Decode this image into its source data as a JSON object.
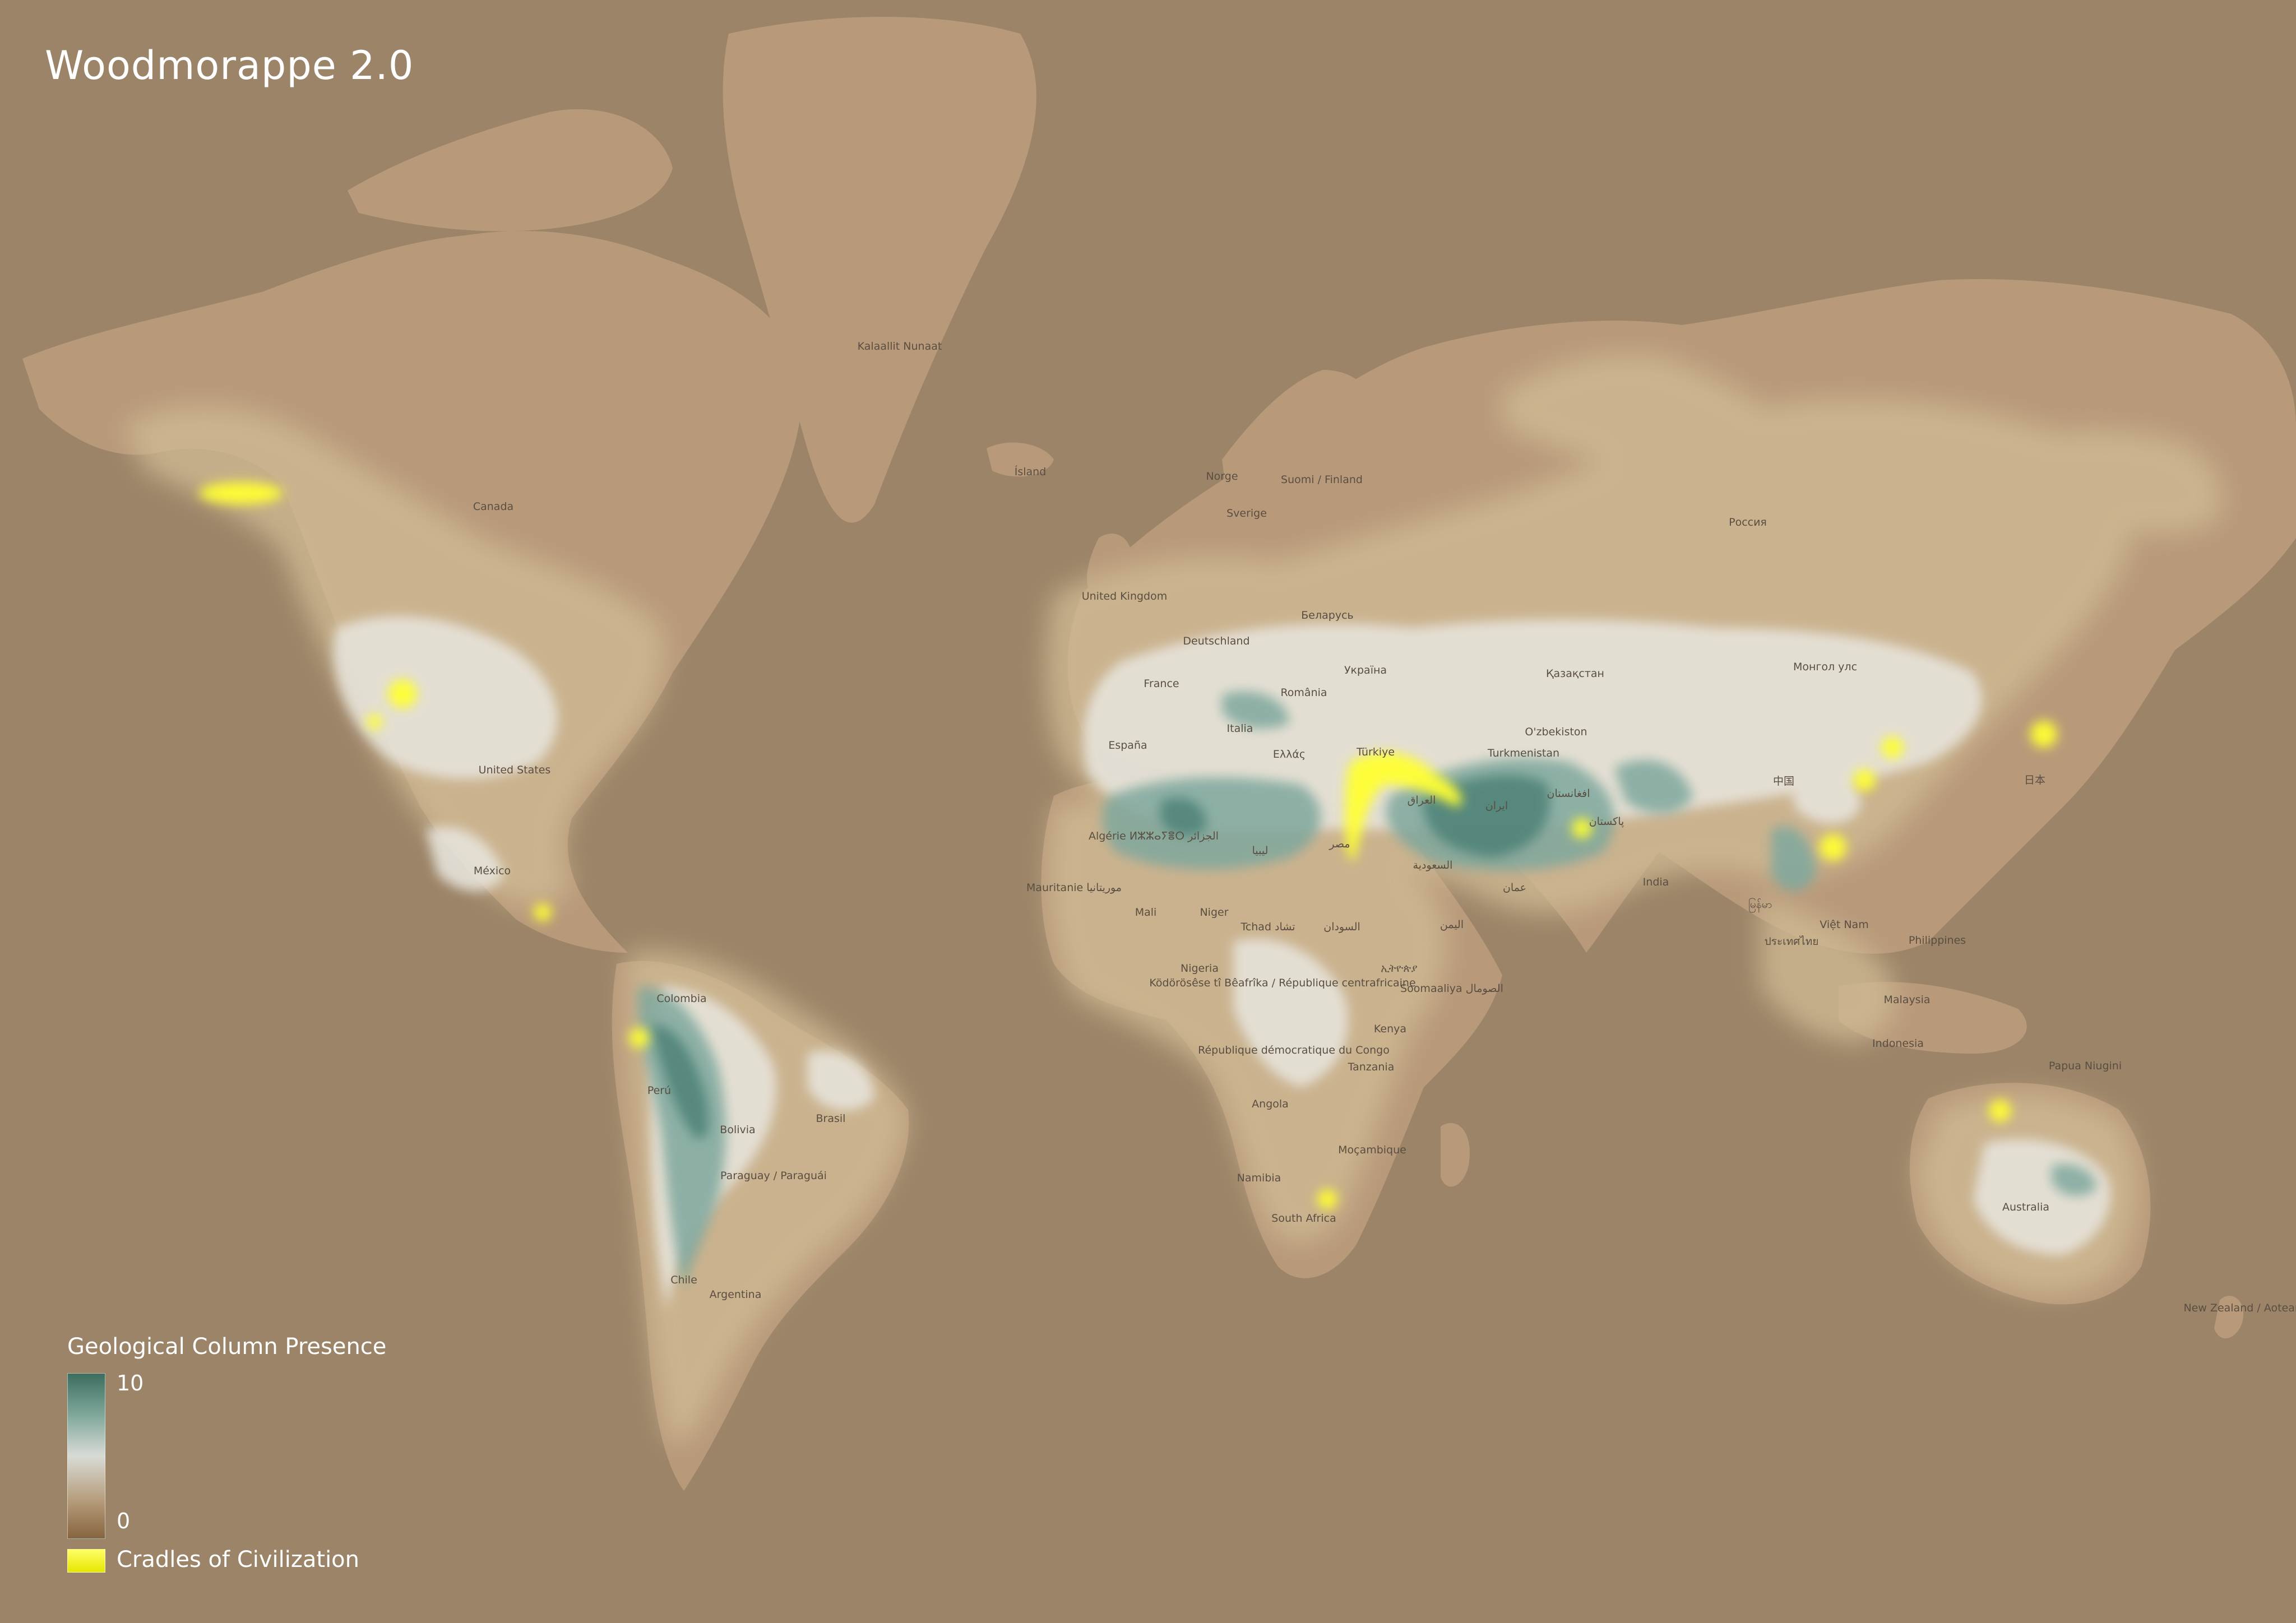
{
  "map": {
    "title": "Woodmorappe 2.0",
    "colors": {
      "ocean": "#9c8468",
      "land": "#b89a7b",
      "heat_low": "#cfb993",
      "heat_mid": "#e8e6df",
      "heat_high": "#7fa89e",
      "heat_max": "#4a7f75",
      "cradle": "#ffff33"
    },
    "labels": [
      "Kalaallit Nunaat",
      "Ísland",
      "Canada",
      "United States",
      "México",
      "Colombia",
      "Perú",
      "Bolivia",
      "Brasil",
      "Paraguay / Paraguái",
      "Chile",
      "Argentina",
      "Norge",
      "Sverige",
      "Suomi / Finland",
      "United Kingdom",
      "Deutschland",
      "Беларусь",
      "France",
      "România",
      "Україна",
      "España",
      "Italia",
      "Ελλάς",
      "Türkiye",
      "Қазақстан",
      "Россия",
      "O'zbekiston",
      "Монгол улс",
      "Turkmenistan",
      "العراق",
      "ایران",
      "افغانستان",
      "پاکستان",
      "مصر",
      "ليبيا",
      "Algérie ⵍⵣⵣⴰⵢⴻⵔ الجزائر",
      "السعودية",
      "عمان",
      "اليمن",
      "Mauritanie موريتانيا",
      "Mali",
      "Niger",
      "Tchad تشاد",
      "السودان",
      "Nigeria",
      "Ködörösêse tî Bêafrîka / République centrafricaine",
      "ኢትዮጵያ",
      "Soomaaliya الصومال",
      "République démocratique du Congo",
      "Kenya",
      "Tanzania",
      "Angola",
      "Moçambique",
      "Namibia",
      "South Africa",
      "India",
      "中国",
      "日本",
      "Việt Nam",
      "Philippines",
      "Malaysia",
      "Indonesia",
      "Papua Niugini",
      "Australia",
      "New Zealand / Aotearoa",
      "မြန်မာ",
      "ประเทศไทย"
    ]
  },
  "legend": {
    "title": "Geological Column Presence",
    "max_label": "10",
    "min_label": "0",
    "cradles_label": "Cradles of Civilization"
  }
}
